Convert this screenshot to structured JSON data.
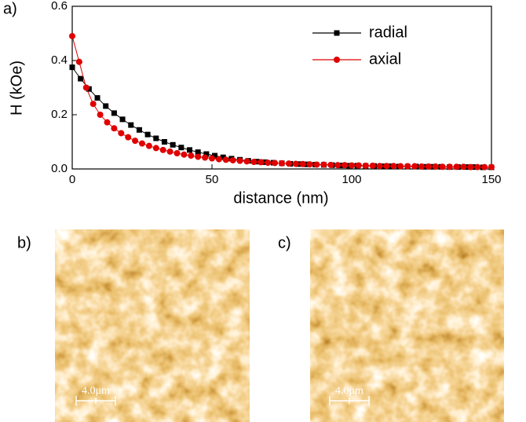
{
  "chart_data": {
    "type": "line",
    "xlabel": "distance (nm)",
    "ylabel": "H (kOe)",
    "xlim": [
      0,
      150
    ],
    "ylim": [
      0,
      0.6
    ],
    "xticks": [
      0,
      50,
      100,
      150
    ],
    "yticks": [
      {
        "value": 0,
        "label": "0.0"
      },
      0.2,
      0.4,
      0.6
    ],
    "legend": "upper right",
    "series": [
      {
        "name": "radial",
        "color": "#000000",
        "marker": "square",
        "x": [
          0,
          3,
          6,
          9,
          12,
          15,
          18,
          21,
          24,
          27,
          30,
          33,
          36,
          39,
          42,
          45,
          48,
          51,
          54,
          57,
          60,
          63,
          66,
          69,
          72,
          75,
          78,
          81,
          84,
          87,
          90,
          93,
          96,
          99,
          102,
          105,
          108,
          111,
          114,
          117,
          120,
          123,
          126,
          129,
          132,
          135,
          138,
          141,
          144,
          147,
          150
        ],
        "values": [
          0.375,
          0.333,
          0.295,
          0.262,
          0.232,
          0.206,
          0.183,
          0.162,
          0.144,
          0.127,
          0.113,
          0.1,
          0.089,
          0.079,
          0.07,
          0.062,
          0.055,
          0.049,
          0.043,
          0.038,
          0.034,
          0.03,
          0.027,
          0.025,
          0.023,
          0.021,
          0.019,
          0.018,
          0.017,
          0.016,
          0.015,
          0.014,
          0.013,
          0.012,
          0.012,
          0.011,
          0.011,
          0.01,
          0.01,
          0.009,
          0.009,
          0.009,
          0.008,
          0.008,
          0.008,
          0.007,
          0.007,
          0.007,
          0.007,
          0.006,
          0.006
        ]
      },
      {
        "name": "axial",
        "color": "#e00000",
        "marker": "circle",
        "x": [
          0,
          2.5,
          5,
          7.5,
          10,
          12.5,
          15,
          17.5,
          20,
          22.5,
          25,
          27.5,
          30,
          32.5,
          35,
          37.5,
          40,
          42.5,
          45,
          47.5,
          50,
          52.5,
          55,
          57.5,
          60,
          62.5,
          65,
          67.5,
          70,
          72.5,
          75,
          77.5,
          80,
          82.5,
          85,
          87.5,
          90,
          92.5,
          95,
          97.5,
          100,
          102.5,
          105,
          107.5,
          110,
          112.5,
          115,
          117.5,
          120,
          122.5,
          125,
          127.5,
          130,
          132.5,
          135,
          137.5,
          140,
          142.5,
          145,
          147.5,
          150
        ],
        "values": [
          0.49,
          0.395,
          0.3,
          0.24,
          0.2,
          0.172,
          0.15,
          0.132,
          0.117,
          0.104,
          0.094,
          0.085,
          0.077,
          0.07,
          0.064,
          0.058,
          0.053,
          0.049,
          0.045,
          0.042,
          0.039,
          0.036,
          0.034,
          0.032,
          0.03,
          0.028,
          0.026,
          0.025,
          0.023,
          0.022,
          0.021,
          0.02,
          0.019,
          0.018,
          0.017,
          0.016,
          0.016,
          0.015,
          0.014,
          0.014,
          0.013,
          0.013,
          0.012,
          0.012,
          0.011,
          0.011,
          0.011,
          0.01,
          0.01,
          0.01,
          0.009,
          0.009,
          0.009,
          0.008,
          0.008,
          0.008,
          0.008,
          0.007,
          0.007,
          0.007,
          0.007
        ]
      }
    ]
  },
  "panel_labels": [
    "a)",
    "b)",
    "c)"
  ],
  "images": [
    {
      "scale_bar": "4.0μm"
    },
    {
      "scale_bar": "4.0μm"
    }
  ]
}
